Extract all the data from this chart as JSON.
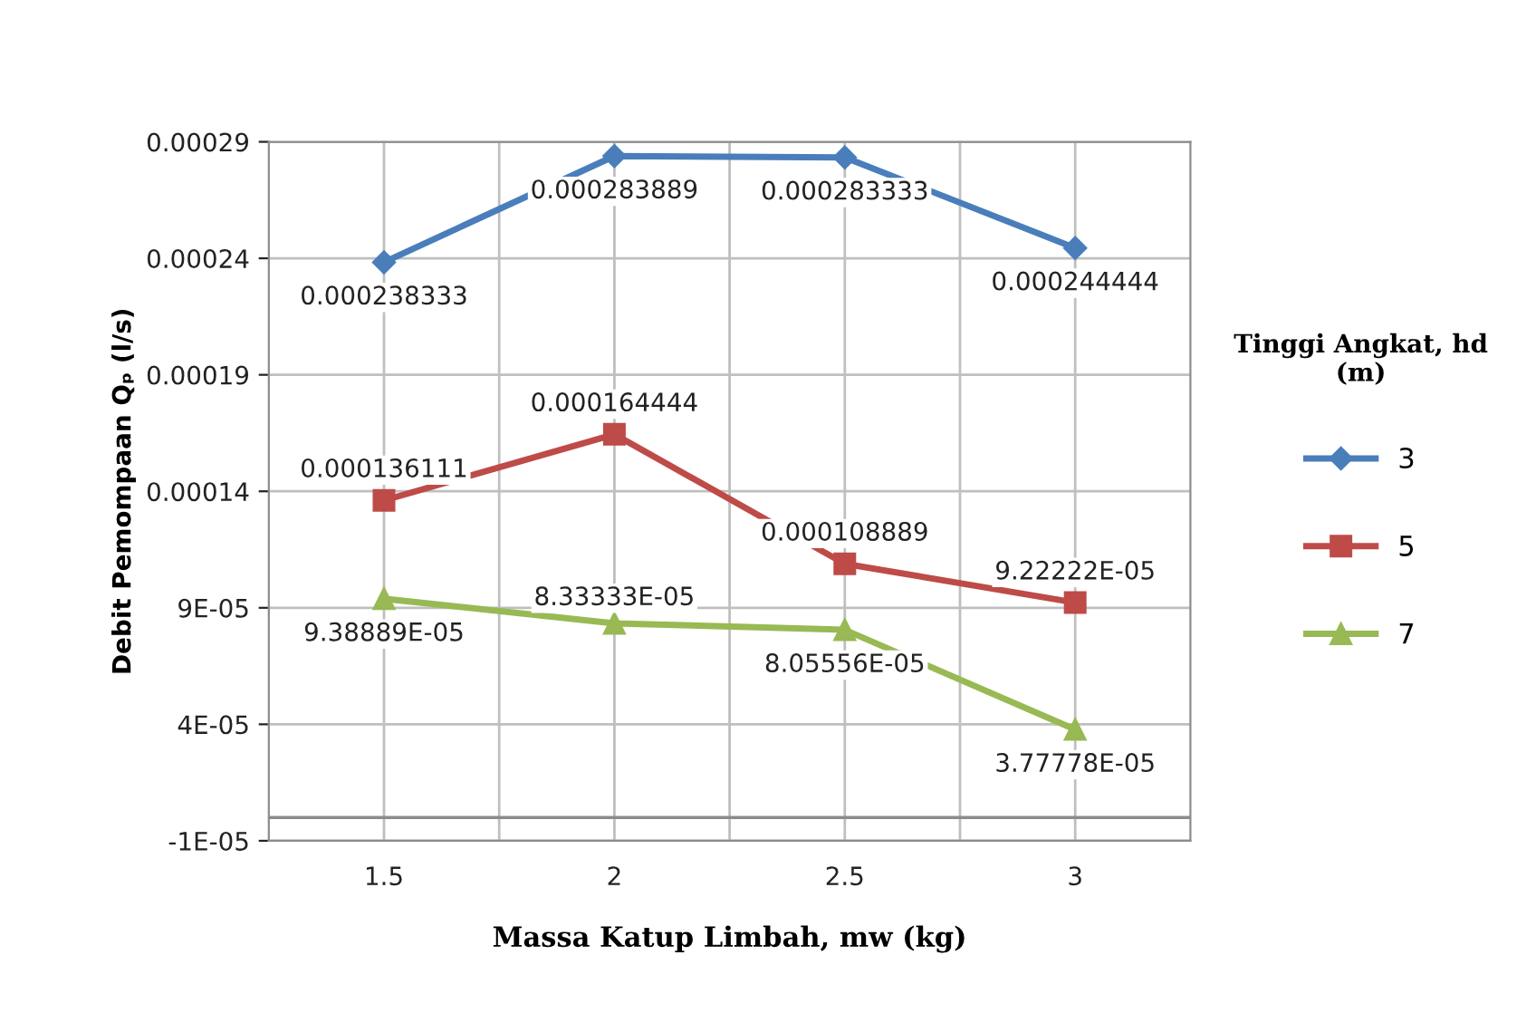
{
  "chart_data": {
    "type": "line",
    "xlabel": "Massa Katup Limbah, mw (kg)",
    "ylabel": "Debit Pemompaan Qₚ (l/s)",
    "legend_title": "Tinggi Angkat, hd\n(m)",
    "categories": [
      "1.5",
      "2",
      "2.5",
      "3"
    ],
    "series": [
      {
        "name": "3",
        "color": "#4a7ebb",
        "marker": "diamond",
        "values": [
          0.000238333,
          0.000283889,
          0.000283333,
          0.000244444
        ],
        "value_labels": [
          "0.000238333",
          "0.000283889",
          "0.000283333",
          "0.000244444"
        ]
      },
      {
        "name": "5",
        "color": "#be4b48",
        "marker": "square",
        "values": [
          0.000136111,
          0.000164444,
          0.000108889,
          9.22222e-05
        ],
        "value_labels": [
          "0.000136111",
          "0.000164444",
          "0.000108889",
          "9.22222E-05"
        ]
      },
      {
        "name": "7",
        "color": "#98b954",
        "marker": "triangle",
        "values": [
          9.38889e-05,
          8.33333e-05,
          8.05556e-05,
          3.77778e-05
        ],
        "value_labels": [
          "9.38889E-05",
          "8.33333E-05",
          "8.05556E-05",
          "3.77778E-05"
        ]
      }
    ],
    "ylim": [
      -1e-05,
      0.00029
    ],
    "yticks": [
      {
        "value": -1e-05,
        "label": "-1E-05"
      },
      {
        "value": 4e-05,
        "label": "4E-05"
      },
      {
        "value": 9e-05,
        "label": "9E-05"
      },
      {
        "value": 0.00014,
        "label": "0.00014"
      },
      {
        "value": 0.00019,
        "label": "0.00019"
      },
      {
        "value": 0.00024,
        "label": "0.00024"
      },
      {
        "value": 0.00029,
        "label": "0.00029"
      }
    ],
    "ref_lines": [
      {
        "axis": "y",
        "value": 0,
        "color": "#8c8c8c"
      }
    ],
    "grid": true,
    "legend": "right",
    "line_style": "solid"
  }
}
